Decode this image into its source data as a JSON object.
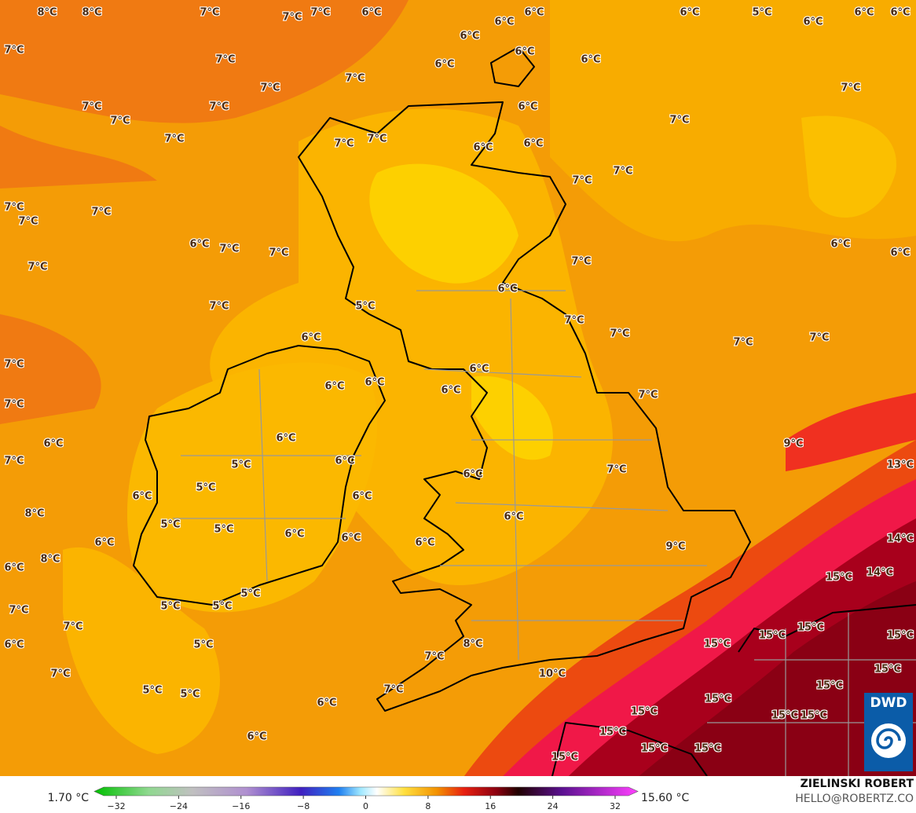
{
  "map": {
    "labels": [
      "8°C",
      "8°C",
      "7°C",
      "7°C",
      "7°C",
      "6°C",
      "6°C",
      "6°C",
      "6°C",
      "5°C",
      "6°C",
      "6°C",
      "6°C",
      "6°C",
      "6°C",
      "7°C",
      "7°C",
      "6°C",
      "6°C",
      "7°C",
      "7°C",
      "7°C",
      "7°C",
      "7°C",
      "6°C",
      "7°C",
      "7°C",
      "7°C",
      "7°C",
      "7°C",
      "6°C",
      "6°C",
      "7°C",
      "7°C",
      "7°C",
      "7°C",
      "7°C",
      "6°C",
      "7°C",
      "7°C",
      "6°C",
      "6°C",
      "7°C",
      "7°C",
      "6°C",
      "7°C",
      "5°C",
      "7°C",
      "7°C",
      "7°C",
      "7°C",
      "6°C",
      "7°C",
      "6°C",
      "6°C",
      "6°C",
      "6°C",
      "7°C",
      "7°C",
      "6°C",
      "6°C",
      "9°C",
      "7°C",
      "5°C",
      "6°C",
      "13°C",
      "6°C",
      "7°C",
      "5°C",
      "6°C",
      "6°C",
      "8°C",
      "6°C",
      "5°C",
      "5°C",
      "6°C",
      "6°C",
      "6°C",
      "6°C",
      "9°C",
      "14°C",
      "8°C",
      "6°C",
      "15°C",
      "14°C",
      "5°C",
      "5°C",
      "5°C",
      "7°C",
      "7°C",
      "15°C",
      "15°C",
      "15°C",
      "6°C",
      "5°C",
      "8°C",
      "15°C",
      "7°C",
      "15°C",
      "7°C",
      "10°C",
      "15°C",
      "5°C",
      "5°C",
      "7°C",
      "15°C",
      "6°C",
      "15°C",
      "15°C",
      "15°C",
      "15°C",
      "6°C",
      "15°C",
      "15°C",
      "15°C"
    ]
  },
  "colorbar": {
    "min_label": "1.70 °C",
    "max_label": "15.60 °C",
    "ticks": [
      {
        "value": -32,
        "label": "−32"
      },
      {
        "value": -24,
        "label": "−24"
      },
      {
        "value": -16,
        "label": "−16"
      },
      {
        "value": -8,
        "label": "−8"
      },
      0,
      8,
      16,
      24,
      32
    ]
  },
  "credit": {
    "author": "ZIELINSKI ROBERT",
    "email": "HELLO@ROBERTZ.CO",
    "logo": "DWD"
  }
}
